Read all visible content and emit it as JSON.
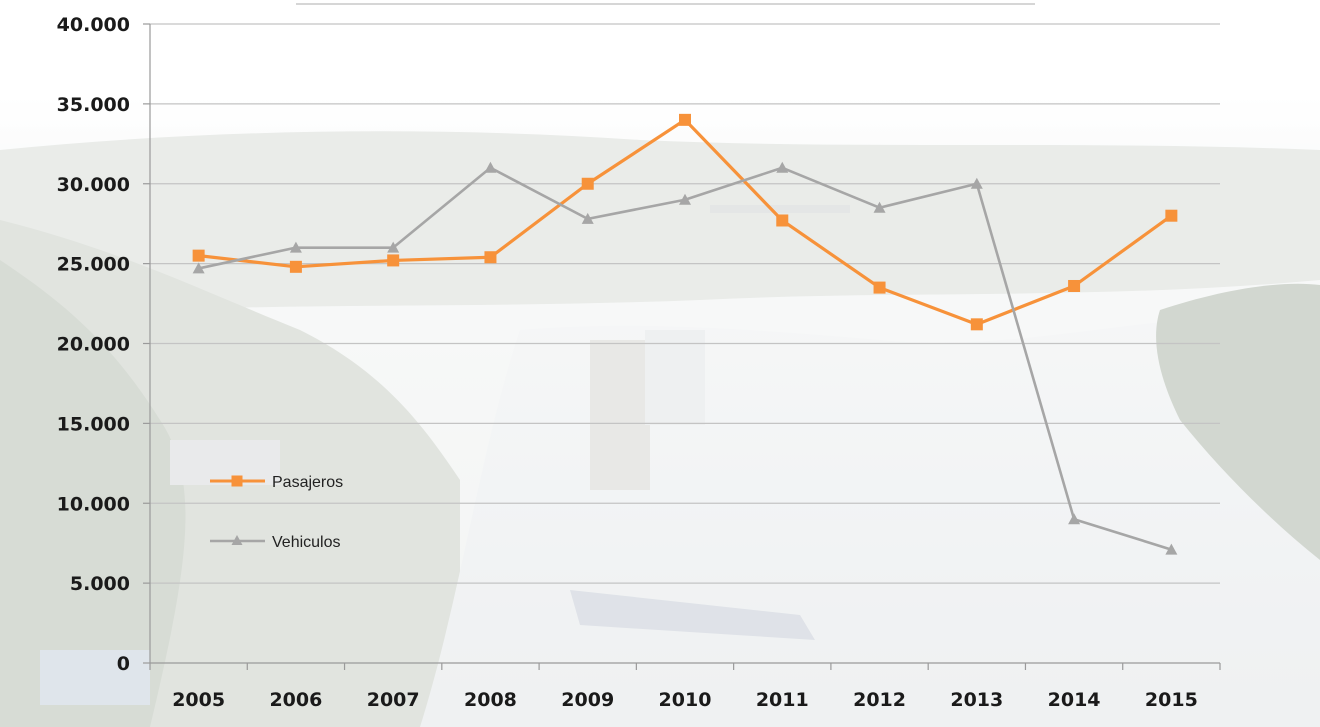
{
  "chart_data": {
    "type": "line",
    "categories": [
      "2005",
      "2006",
      "2007",
      "2008",
      "2009",
      "2010",
      "2011",
      "2012",
      "2013",
      "2014",
      "2015"
    ],
    "series": [
      {
        "name": "Pasajeros",
        "color": "#f7923a",
        "marker": "square",
        "values": [
          25500,
          24800,
          25200,
          25400,
          30000,
          34000,
          27700,
          23500,
          21200,
          23600,
          28000
        ]
      },
      {
        "name": "Vehiculos",
        "color": "#a6a6a6",
        "marker": "triangle",
        "values": [
          24700,
          26000,
          26000,
          31000,
          27800,
          29000,
          31000,
          28500,
          30000,
          9000,
          7100
        ]
      }
    ],
    "y_ticks": [
      "0",
      "5.000",
      "10.000",
      "15.000",
      "20.000",
      "25.000",
      "30.000",
      "35.000",
      "40.000"
    ],
    "ylim": [
      0,
      40000
    ],
    "grid": true,
    "legend_position": "left-middle",
    "background": "photo of a port with ships (faded)"
  }
}
